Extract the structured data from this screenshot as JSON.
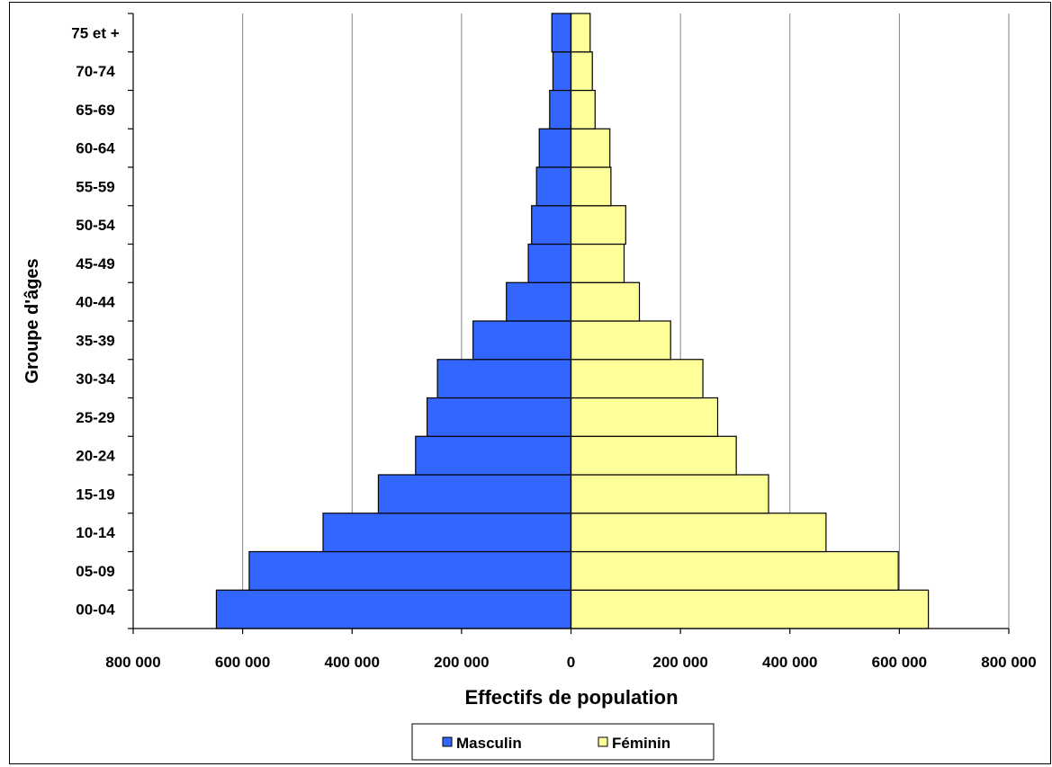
{
  "chart_data": {
    "type": "bar",
    "orientation": "horizontal",
    "layout": "population-pyramid",
    "categories": [
      "00-04",
      "05-09",
      "10-14",
      "15-19",
      "20-24",
      "25-29",
      "30-34",
      "35-39",
      "40-44",
      "45-49",
      "50-54",
      "55-59",
      "60-64",
      "65-69",
      "70-74",
      "75 et +"
    ],
    "series": [
      {
        "name": "Masculin",
        "color": "#3366ff",
        "side": "left",
        "values": [
          648000,
          588000,
          453000,
          352000,
          284000,
          263000,
          244000,
          179000,
          118000,
          78000,
          72000,
          63000,
          58000,
          39000,
          33000,
          35000
        ]
      },
      {
        "name": "Féminin",
        "color": "#ffff99",
        "side": "right",
        "values": [
          653000,
          598000,
          466000,
          361000,
          302000,
          268000,
          241000,
          182000,
          125000,
          97000,
          100000,
          73000,
          71000,
          44000,
          39000,
          35000
        ]
      }
    ],
    "xlabel": "Effectifs de population",
    "ylabel": "Groupe d'âges",
    "xlim": [
      -800000,
      800000
    ],
    "xticks": [
      -800000,
      -600000,
      -400000,
      -200000,
      0,
      200000,
      400000,
      600000,
      800000
    ],
    "xtick_labels": [
      "800 000",
      "600 000",
      "400 000",
      "200 000",
      "0",
      "200 000",
      "400 000",
      "600 000",
      "800 000"
    ],
    "grid": "vertical",
    "legend_position": "bottom"
  }
}
